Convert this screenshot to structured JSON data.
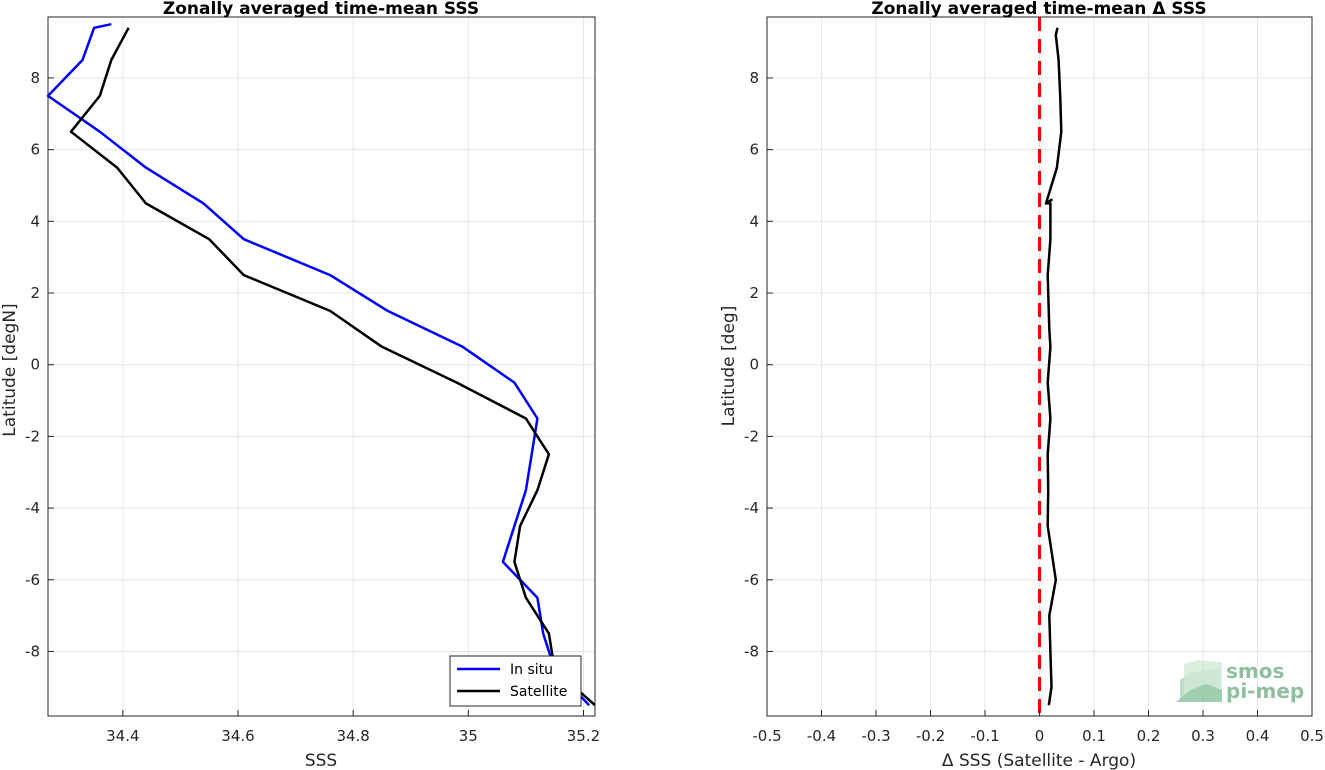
{
  "chart_data": [
    {
      "type": "line",
      "title": "Zonally averaged time-mean SSS",
      "xlabel": "SSS",
      "ylabel": "Latitude [degN]",
      "xlim": [
        34.27,
        35.22
      ],
      "ylim": [
        -9.8,
        9.7
      ],
      "xticks": [
        34.4,
        34.6,
        34.8,
        35,
        35.2
      ],
      "yticks": [
        -8,
        -6,
        -4,
        -2,
        0,
        2,
        4,
        6,
        8
      ],
      "grid": true,
      "legend": "bottom-right",
      "series": [
        {
          "name": "In situ",
          "color": "#0000ff",
          "x": [
            35.21,
            35.15,
            35.13,
            35.12,
            35.06,
            35.08,
            35.1,
            35.11,
            35.12,
            35.08,
            34.99,
            34.86,
            34.76,
            34.61,
            34.54,
            34.44,
            34.36,
            34.27,
            34.33,
            34.35,
            34.38
          ],
          "y": [
            -9.5,
            -8.5,
            -7.5,
            -6.5,
            -5.5,
            -4.5,
            -3.5,
            -2.5,
            -1.5,
            -0.5,
            0.5,
            1.5,
            2.5,
            3.5,
            4.5,
            5.5,
            6.5,
            7.5,
            8.5,
            9.4,
            9.5
          ]
        },
        {
          "name": "Satellite",
          "color": "#000000",
          "x": [
            35.22,
            35.15,
            35.14,
            35.1,
            35.08,
            35.09,
            35.12,
            35.14,
            35.1,
            34.98,
            34.85,
            34.76,
            34.61,
            34.55,
            34.44,
            34.39,
            34.31,
            34.36,
            34.38,
            34.41
          ],
          "y": [
            -9.5,
            -8.5,
            -7.5,
            -6.5,
            -5.5,
            -4.5,
            -3.5,
            -2.5,
            -1.5,
            -0.5,
            0.5,
            1.5,
            2.5,
            3.5,
            4.5,
            5.5,
            6.5,
            7.5,
            8.5,
            9.4
          ]
        }
      ]
    },
    {
      "type": "line",
      "title": "Zonally averaged time-mean Δ SSS",
      "xlabel": "Δ SSS (Satellite - Argo)",
      "ylabel": "Latitude [deg]",
      "xlim": [
        -0.5,
        0.5
      ],
      "ylim": [
        -9.8,
        9.7
      ],
      "xticks": [
        -0.5,
        -0.4,
        -0.3,
        -0.2,
        -0.1,
        0,
        0.1,
        0.2,
        0.3,
        0.4,
        0.5
      ],
      "yticks": [
        -8,
        -6,
        -4,
        -2,
        0,
        2,
        4,
        6,
        8
      ],
      "grid": true,
      "reference_line": {
        "x": 0,
        "color": "#ff0000",
        "style": "dashed"
      },
      "series": [
        {
          "color": "#000000",
          "x": [
            0.017,
            0.022,
            0.02,
            0.018,
            0.03,
            0.02,
            0.015,
            0.016,
            0.015,
            0.02,
            0.015,
            0.02,
            0.018,
            0.015,
            0.02,
            0.02,
            0.02,
            0.015,
            0.022,
            0.012,
            0.032,
            0.04,
            0.038,
            0.035,
            0.03,
            0.033
          ],
          "y": [
            -9.5,
            -9,
            -8,
            -7,
            -6,
            -5,
            -4.5,
            -3.5,
            -2.5,
            -1.5,
            -0.5,
            0.5,
            1,
            2.5,
            3.5,
            4,
            4.5,
            4.5,
            4.6,
            4.5,
            5.5,
            6.5,
            7.5,
            8.5,
            9.2,
            9.4
          ]
        }
      ]
    }
  ],
  "logo": {
    "line1": "smos",
    "line2": "pi-mep",
    "color": "#8fbf9f"
  }
}
